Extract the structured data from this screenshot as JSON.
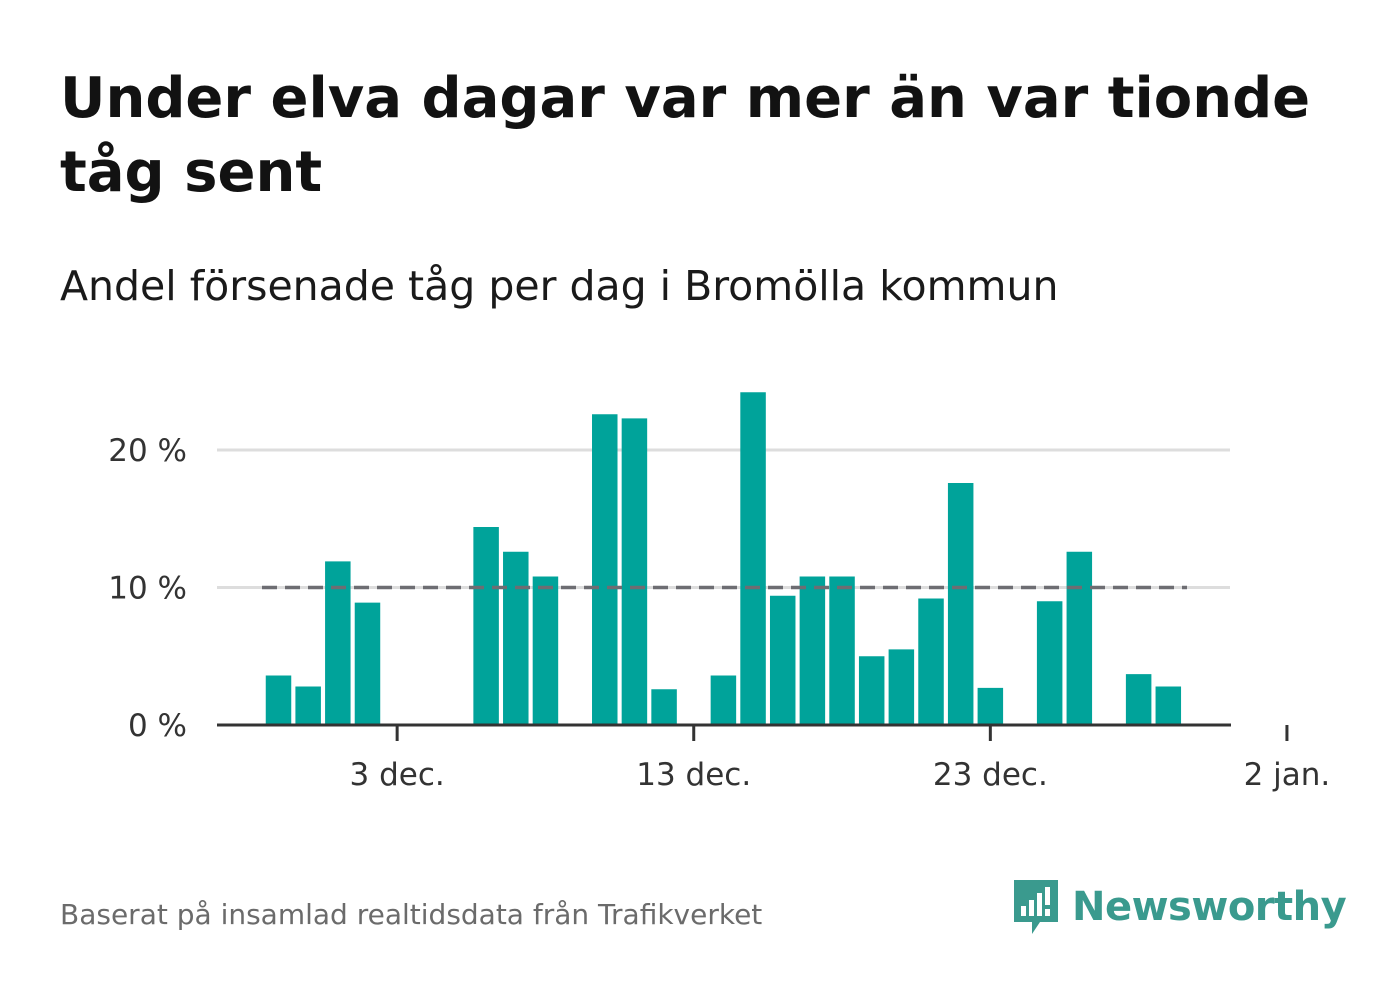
{
  "title": "Under elva dagar var mer än var tionde tåg sent",
  "subtitle": "Andel försenade tåg per dag i Bromölla kommun",
  "footer": "Baserat på insamlad realtidsdata från Trafikverket",
  "logo": {
    "name": "Newsworthy",
    "icon": "newsworthy-logo-icon"
  },
  "colors": {
    "bar": "#00a39a",
    "reference_line": "#6d6d72",
    "grid": "#dddddd",
    "axis": "#333333"
  },
  "chart_data": {
    "type": "bar",
    "title": "",
    "xlabel": "",
    "ylabel": "",
    "x": [
      "2025-11-29",
      "2025-11-30",
      "2025-12-01",
      "2025-12-02",
      "2025-12-03",
      "2025-12-04",
      "2025-12-05",
      "2025-12-06",
      "2025-12-07",
      "2025-12-08",
      "2025-12-09",
      "2025-12-10",
      "2025-12-11",
      "2025-12-12",
      "2025-12-13",
      "2025-12-14",
      "2025-12-15",
      "2025-12-16",
      "2025-12-17",
      "2025-12-18",
      "2025-12-19",
      "2025-12-20",
      "2025-12-21",
      "2025-12-22",
      "2025-12-23",
      "2025-12-24",
      "2025-12-25",
      "2025-12-26",
      "2025-12-27",
      "2025-12-28",
      "2025-12-29",
      "2025-12-30",
      "2025-12-31",
      "2026-01-01"
    ],
    "values": [
      3.6,
      2.8,
      11.9,
      8.9,
      0,
      0,
      0,
      14.4,
      12.6,
      10.8,
      0,
      22.6,
      22.3,
      2.6,
      0,
      3.6,
      24.2,
      9.4,
      10.8,
      10.8,
      5.0,
      5.5,
      9.2,
      17.6,
      2.7,
      0,
      9.0,
      12.6,
      0,
      3.7,
      2.8,
      0,
      0,
      0
    ],
    "ylim": [
      0,
      25
    ],
    "yticks": [
      0,
      10,
      20
    ],
    "ytick_labels": [
      "0 %",
      "10 %",
      "20 %"
    ],
    "xtick_labels": [
      "3 dec.",
      "13 dec.",
      "23 dec.",
      "2 jan."
    ],
    "xticks": [
      "2025-12-03",
      "2025-12-13",
      "2025-12-23",
      "2026-01-02"
    ],
    "reference_line": 10,
    "grid": true,
    "legend": "none"
  }
}
